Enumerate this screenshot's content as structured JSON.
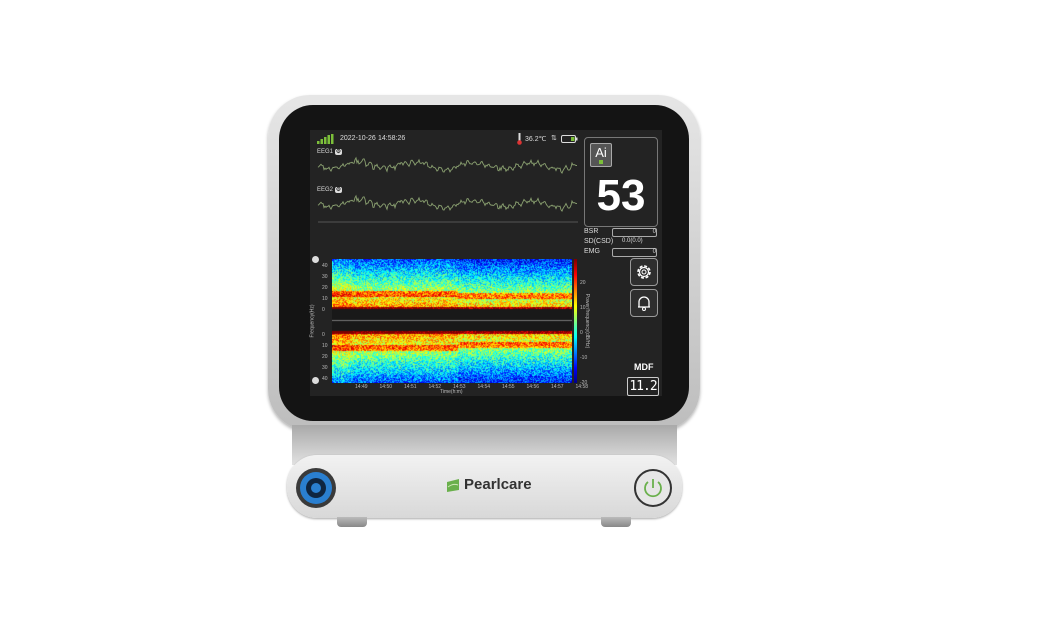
{
  "brand": "Pearlcare",
  "status_bar": {
    "date": "2022-10-26",
    "time": "14:58:26",
    "temperature": "36.2℃",
    "signal_icon": "signal-bars-icon",
    "battery_icon": "battery-icon"
  },
  "eeg": {
    "channel1": "EEG1",
    "channel2": "EEG2",
    "trace_color": "#8aa070"
  },
  "index_panel": {
    "ai_label": "Ai",
    "value": "53"
  },
  "params": [
    {
      "label": "BSR",
      "value": "0"
    },
    {
      "label": "SD(CSD)",
      "value": "0.0(0.0)"
    },
    {
      "label": "EMG",
      "value": "0"
    }
  ],
  "mdf": {
    "label": "MDF",
    "value": "11.2"
  },
  "spectrogram": {
    "freq_ticks_top": [
      "40",
      "30",
      "20",
      "10",
      "0"
    ],
    "freq_ticks_bottom": [
      "0",
      "10",
      "20",
      "30",
      "40"
    ],
    "time_ticks": [
      "14:49",
      "14:50",
      "14:51",
      "14:52",
      "14:53",
      "14:54",
      "14:55",
      "14:56",
      "14:57",
      "14:58"
    ],
    "colorbar_ticks": [
      "20",
      "10",
      "0",
      "-10",
      "-20"
    ],
    "ylabel": "Frequency(Hz)",
    "xlabel": "Time(h:m)",
    "colorbar_label": "Power/frequency(dB/Hz)"
  },
  "colors": {
    "accent_green": "#6ab04c",
    "port_blue": "#2a7fd0"
  }
}
